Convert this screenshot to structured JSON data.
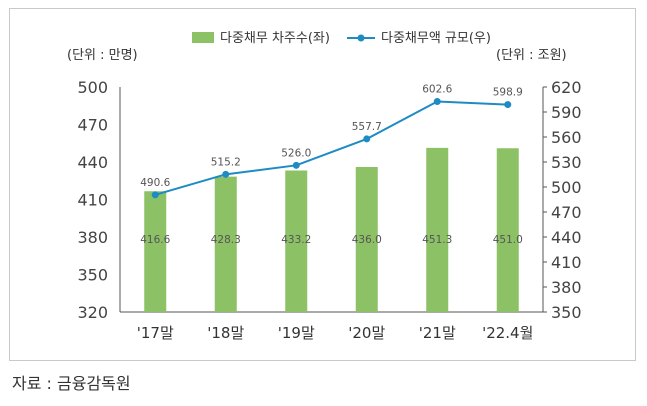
{
  "chart_data": {
    "type": "bar",
    "combo": "bar+line",
    "categories": [
      "'17말",
      "'18말",
      "'19말",
      "'20말",
      "'21말",
      "'22.4월"
    ],
    "series": [
      {
        "name": "다중채무 차주수(좌)",
        "type": "bar",
        "axis": "left",
        "values": [
          416.6,
          428.3,
          433.2,
          436.0,
          451.3,
          451.0
        ],
        "labels": [
          "416.6",
          "428.3",
          "433.2",
          "436.0",
          "451.3",
          "451.0"
        ],
        "color": "#8cc165"
      },
      {
        "name": "다중채무액 규모(우)",
        "type": "line",
        "axis": "right",
        "values": [
          490.6,
          515.2,
          526.0,
          557.7,
          602.6,
          598.9
        ],
        "labels": [
          "490.6",
          "515.2",
          "526.0",
          "557.7",
          "602.6",
          "598.9"
        ],
        "color": "#1e8bc3"
      }
    ],
    "left_axis": {
      "unit_label": "(단위 : 만명)",
      "ylim": [
        320,
        500
      ],
      "ticks": [
        "500",
        "470",
        "440",
        "410",
        "380",
        "350",
        "320"
      ]
    },
    "right_axis": {
      "unit_label": "(단위 : 조원)",
      "ylim": [
        350,
        620
      ],
      "ticks": [
        "620",
        "590",
        "560",
        "530",
        "500",
        "470",
        "440",
        "410",
        "380",
        "350"
      ]
    },
    "legend_position": "top-center",
    "grid": false
  },
  "source": "자료 : 금융감독원"
}
